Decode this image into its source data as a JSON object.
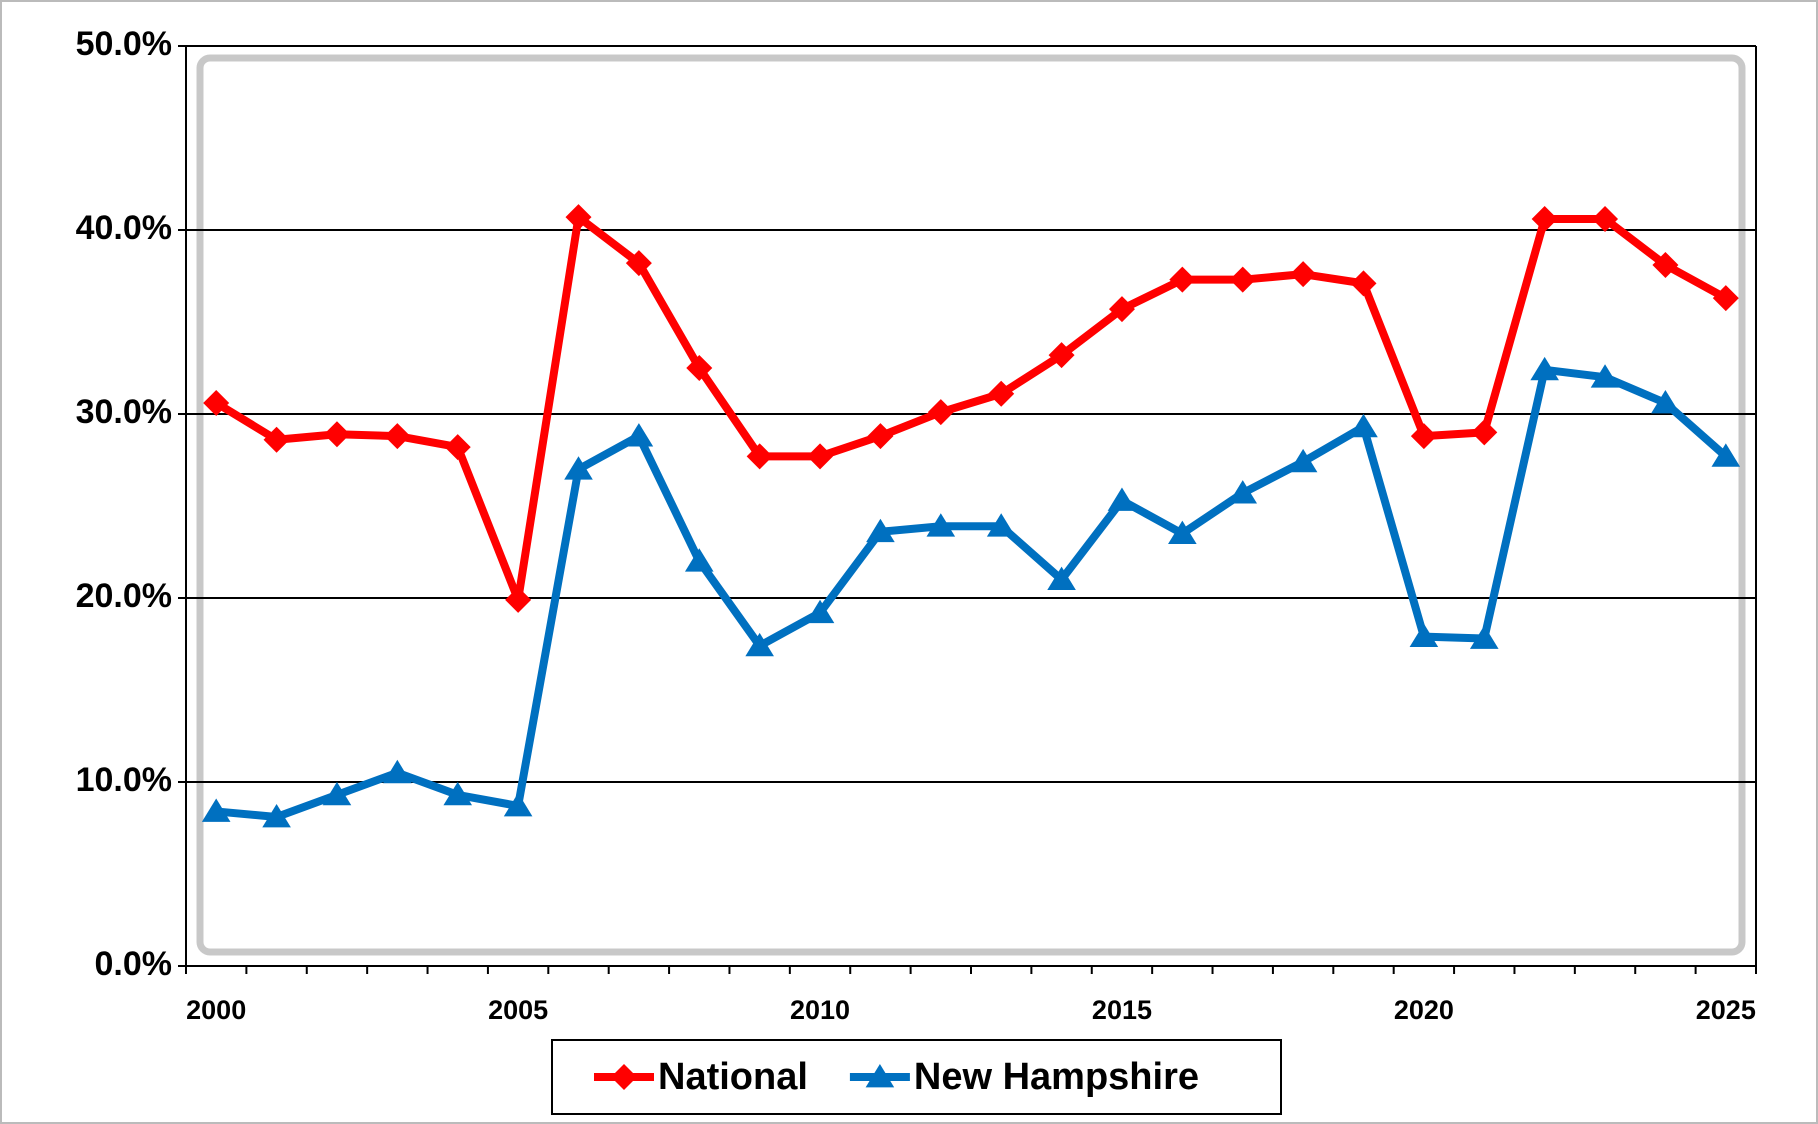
{
  "chart_data": {
    "type": "line",
    "categories": [
      "2000",
      null,
      null,
      null,
      null,
      "2005",
      null,
      null,
      null,
      null,
      "2010",
      null,
      null,
      null,
      null,
      "2015",
      null,
      null,
      null,
      null,
      "2020",
      null,
      null,
      null,
      null,
      "2025"
    ],
    "series": [
      {
        "name": "National",
        "color": "#ff0000",
        "marker": "diamond",
        "values": [
          30.6,
          28.6,
          28.9,
          28.8,
          28.2,
          19.9,
          40.7,
          38.2,
          32.5,
          27.7,
          27.7,
          28.8,
          30.1,
          31.1,
          33.2,
          35.7,
          37.3,
          37.3,
          37.6,
          37.1,
          28.8,
          29.0,
          40.6,
          40.6,
          38.1,
          36.3
        ]
      },
      {
        "name": "New Hampshire",
        "color": "#0070c0",
        "marker": "triangle",
        "values": [
          8.4,
          8.1,
          9.3,
          10.5,
          9.3,
          8.7,
          27.0,
          28.8,
          22.0,
          17.4,
          19.2,
          23.6,
          23.9,
          23.9,
          21.0,
          25.3,
          23.5,
          25.7,
          27.4,
          29.3,
          17.9,
          17.8,
          32.4,
          32.0,
          30.6,
          27.7
        ]
      }
    ],
    "ylim": [
      0,
      50
    ],
    "yticks": [
      {
        "value": 0,
        "label": "0.0%"
      },
      {
        "value": 10,
        "label": "10.0%"
      },
      {
        "value": 20,
        "label": "20.0%"
      },
      {
        "value": 30,
        "label": "30.0%"
      },
      {
        "value": 40,
        "label": "40.0%"
      },
      {
        "value": 50,
        "label": "50.0%"
      }
    ],
    "grid": true,
    "legend": "bottom"
  }
}
